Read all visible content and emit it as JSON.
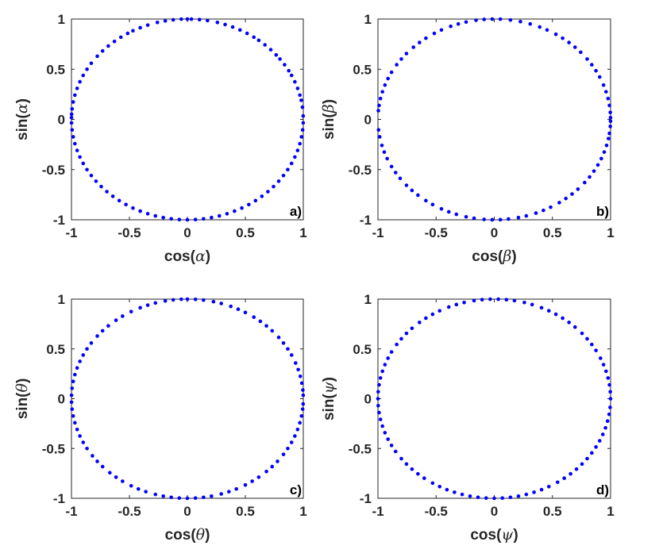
{
  "chart_data": [
    {
      "type": "scatter",
      "panel_label": "a)",
      "xlabel": {
        "func": "cos",
        "symbol": "α"
      },
      "ylabel": {
        "func": "sin",
        "symbol": "α"
      },
      "xlim": [
        -1,
        1
      ],
      "ylim": [
        -1,
        1
      ],
      "xticks": [
        -1,
        -0.5,
        0,
        0.5,
        1
      ],
      "yticks": [
        -1,
        -0.5,
        0,
        0.5,
        1
      ],
      "xtick_labels": [
        "-1",
        "-0.5",
        "0",
        "0.5",
        "1"
      ],
      "ytick_labels": [
        "-1",
        "-0.5",
        "0",
        "0.5",
        "1"
      ],
      "color": "#0000ff",
      "grid": false,
      "angles_deg": [
        2,
        7,
        11,
        14,
        18,
        22,
        26,
        29,
        33,
        37,
        40,
        44,
        48,
        52,
        55,
        59,
        63,
        67,
        71,
        75,
        80,
        84,
        88,
        90,
        93,
        97,
        101,
        105,
        110,
        114,
        118,
        121,
        125,
        129,
        133,
        137,
        141,
        146,
        150,
        154,
        158,
        162,
        166,
        170,
        174,
        177,
        179,
        182,
        186,
        190,
        194,
        198,
        202,
        206,
        210,
        214,
        218,
        222,
        226,
        230,
        234,
        238,
        242,
        246,
        250,
        254,
        258,
        262,
        266,
        270,
        274,
        278,
        282,
        286,
        290,
        294,
        298,
        302,
        306,
        310,
        314,
        318,
        322,
        326,
        330,
        334,
        338,
        342,
        346,
        350,
        354,
        358
      ]
    },
    {
      "type": "scatter",
      "panel_label": "b)",
      "xlabel": {
        "func": "cos",
        "symbol": "β"
      },
      "ylabel": {
        "func": "sin",
        "symbol": "β"
      },
      "xlim": [
        -1,
        1
      ],
      "ylim": [
        -1,
        1
      ],
      "xticks": [
        -1,
        -0.5,
        0,
        0.5,
        1
      ],
      "yticks": [
        -1,
        -0.5,
        0,
        0.5,
        1
      ],
      "xtick_labels": [
        "-1",
        "-0.5",
        "0",
        "0.5",
        "1"
      ],
      "ytick_labels": [
        "-1",
        "-0.5",
        "0",
        "0.5",
        "1"
      ],
      "color": "#0000ff",
      "grid": false,
      "angles_deg": [
        1,
        4,
        8,
        12,
        16,
        20,
        25,
        29,
        33,
        37,
        42,
        46,
        50,
        54,
        58,
        63,
        67,
        72,
        77,
        82,
        87,
        91,
        95,
        99,
        104,
        108,
        112,
        117,
        121,
        126,
        130,
        134,
        139,
        143,
        147,
        152,
        156,
        160,
        164,
        168,
        172,
        175,
        186,
        190,
        195,
        199,
        203,
        208,
        212,
        216,
        221,
        225,
        229,
        234,
        238,
        243,
        247,
        251,
        256,
        260,
        265,
        269,
        273,
        277,
        282,
        286,
        291,
        295,
        299,
        304,
        308,
        312,
        316,
        321,
        325,
        329,
        333,
        337,
        341,
        345,
        349,
        352,
        356,
        359
      ]
    },
    {
      "type": "scatter",
      "panel_label": "c)",
      "xlabel": {
        "func": "cos",
        "symbol": "θ"
      },
      "ylabel": {
        "func": "sin",
        "symbol": "θ"
      },
      "xlim": [
        -1,
        1
      ],
      "ylim": [
        -1,
        1
      ],
      "xticks": [
        -1,
        -0.5,
        0,
        0.5,
        1
      ],
      "yticks": [
        -1,
        -0.5,
        0,
        0.5,
        1
      ],
      "xtick_labels": [
        "-1",
        "-0.5",
        "0",
        "0.5",
        "1"
      ],
      "ytick_labels": [
        "-1",
        "-0.5",
        "0",
        "0.5",
        "1"
      ],
      "color": "#0000ff",
      "grid": false,
      "angles_deg": [
        2,
        5,
        9,
        13,
        17,
        21,
        26,
        30,
        34,
        38,
        43,
        47,
        51,
        55,
        60,
        64,
        68,
        73,
        77,
        82,
        86,
        90,
        93,
        97,
        101,
        106,
        110,
        114,
        119,
        124,
        128,
        133,
        137,
        141,
        146,
        150,
        154,
        158,
        162,
        166,
        170,
        174,
        178,
        182,
        186,
        190,
        194,
        198,
        202,
        206,
        210,
        215,
        219,
        223,
        228,
        232,
        236,
        241,
        245,
        249,
        254,
        258,
        262,
        266,
        270,
        274,
        278,
        282,
        287,
        291,
        295,
        300,
        304,
        308,
        313,
        317,
        321,
        326,
        330,
        334,
        338,
        342,
        346,
        350,
        354,
        357
      ]
    },
    {
      "type": "scatter",
      "panel_label": "d)",
      "xlabel": {
        "func": "cos",
        "symbol": "ψ"
      },
      "ylabel": {
        "func": "sin",
        "symbol": "ψ"
      },
      "xlim": [
        -1,
        1
      ],
      "ylim": [
        -1,
        1
      ],
      "xticks": [
        -1,
        -0.5,
        0,
        0.5,
        1
      ],
      "yticks": [
        -1,
        -0.5,
        0,
        0.5,
        1
      ],
      "xtick_labels": [
        "-1",
        "-0.5",
        "0",
        "0.5",
        "1"
      ],
      "ytick_labels": [
        "-1",
        "-0.5",
        "0",
        "0.5",
        "1"
      ],
      "color": "#0000ff",
      "grid": false,
      "angles_deg": [
        0,
        4,
        8,
        12,
        16,
        20,
        24,
        29,
        33,
        37,
        41,
        46,
        50,
        54,
        58,
        62,
        66,
        71,
        75,
        80,
        84,
        88,
        92,
        96,
        100,
        105,
        109,
        113,
        118,
        122,
        126,
        130,
        135,
        139,
        143,
        147,
        152,
        156,
        160,
        164,
        168,
        172,
        176,
        180,
        184,
        188,
        192,
        196,
        200,
        204,
        208,
        212,
        217,
        221,
        225,
        229,
        233,
        238,
        242,
        246,
        250,
        254,
        258,
        262,
        266,
        270,
        274,
        278,
        282,
        286,
        290,
        294,
        298,
        303,
        307,
        311,
        315,
        319,
        323,
        327,
        331,
        335,
        339,
        343,
        347,
        351,
        355
      ]
    }
  ]
}
